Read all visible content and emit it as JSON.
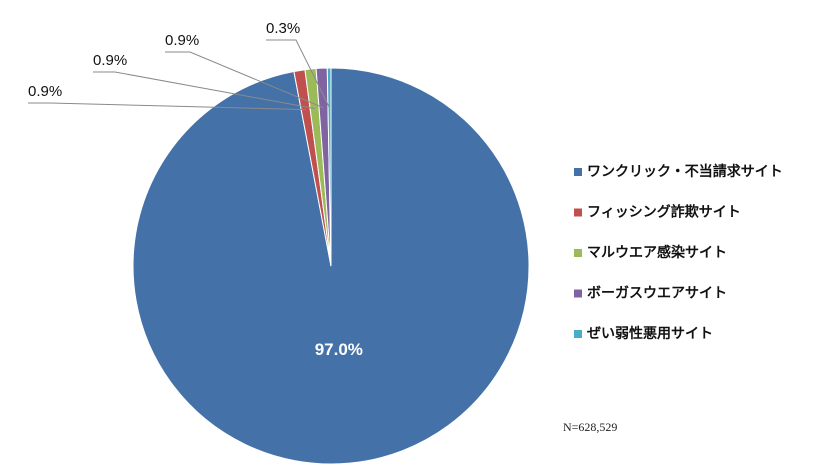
{
  "chart_data": {
    "type": "pie",
    "series": [
      {
        "name": "ワンクリック・不当請求サイト",
        "value": 97.0,
        "label": "97.0%",
        "color": "#4472A8"
      },
      {
        "name": "フィッシング詐欺サイト",
        "value": 0.9,
        "label": "0.9%",
        "color": "#C0504D"
      },
      {
        "name": "マルウエア感染サイト",
        "value": 0.9,
        "label": "0.9%",
        "color": "#9BBB59"
      },
      {
        "name": "ボーガスウエアサイト",
        "value": 0.9,
        "label": "0.9%",
        "color": "#8064A2"
      },
      {
        "name": "ぜい弱性悪用サイト",
        "value": 0.3,
        "label": "0.3%",
        "color": "#4BACC6"
      }
    ],
    "legend_position": "right",
    "note": "N=628,529"
  }
}
